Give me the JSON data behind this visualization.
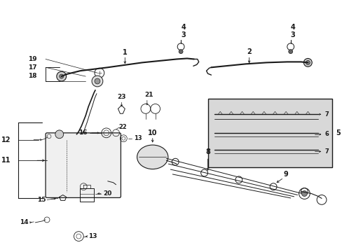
{
  "bg_color": "#ffffff",
  "line_color": "#1a1a1a",
  "gray_bg": "#d8d8d8",
  "figsize": [
    4.89,
    3.6
  ],
  "dpi": 100
}
